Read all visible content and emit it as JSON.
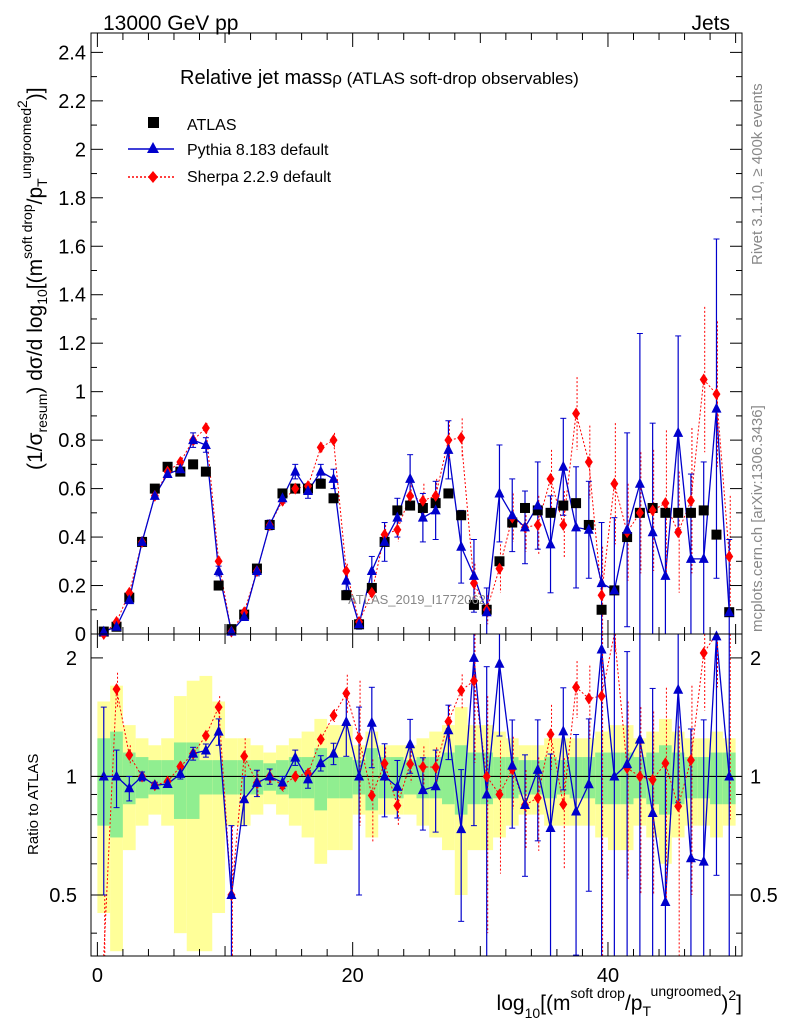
{
  "header": {
    "energy_label": "13000 GeV pp",
    "category_label": "Jets"
  },
  "side_text": {
    "rivet": "Rivet 3.1.10, ≥ 400k events",
    "mcplots": "mcplots.cern.ch [arXiv:1306.3436]"
  },
  "watermark": "ATLAS_2019_I1772062",
  "chart_data": {
    "type": "scatter",
    "title_main": "Relative jet mass",
    "title_sub": "ρ (ATLAS soft-drop observables)",
    "ylabel_top": "(1/σresum) dσ/d log10[(m soft drop/pT ungroomed)2)]",
    "ylabel_bottom": "Ratio to ATLAS",
    "xlabel": "log10[(m soft drop/pT ungroomed)2]",
    "xlim": [
      -0.5,
      50.5
    ],
    "ylim_top": [
      0,
      2.48
    ],
    "ylim_ratio": [
      0.35,
      2.3
    ],
    "x_ticks": [
      0,
      20,
      40
    ],
    "y_ticks_top": [
      "0",
      "0.2",
      "0.4",
      "0.6",
      "0.8",
      "1",
      "1.2",
      "1.4",
      "1.6",
      "1.8",
      "2",
      "2.2",
      "2.4"
    ],
    "y_ticks_ratio": [
      "0.5",
      "1",
      "2"
    ],
    "legend": [
      "ATLAS",
      "Pythia 8.183 default",
      "Sherpa 2.2.9 default"
    ],
    "x": [
      0.5,
      1.5,
      2.5,
      3.5,
      4.5,
      5.5,
      6.5,
      7.5,
      8.5,
      9.5,
      10.5,
      11.5,
      12.5,
      13.5,
      14.5,
      15.5,
      16.5,
      17.5,
      18.5,
      19.5,
      20.5,
      21.5,
      22.5,
      23.5,
      24.5,
      25.5,
      26.5,
      27.5,
      28.5,
      29.5,
      30.5,
      31.5,
      32.5,
      33.5,
      34.5,
      35.5,
      36.5,
      37.5,
      38.5,
      39.5,
      40.5,
      41.5,
      42.5,
      43.5,
      44.5,
      45.5,
      46.5,
      47.5,
      48.5,
      49.5
    ],
    "series": [
      {
        "name": "ATLAS",
        "color": "#000000",
        "marker": "square",
        "values": [
          0.01,
          0.03,
          0.15,
          0.38,
          0.6,
          0.69,
          0.67,
          0.7,
          0.67,
          0.2,
          0.02,
          0.08,
          0.27,
          0.45,
          0.58,
          0.6,
          0.6,
          0.62,
          0.56,
          0.16,
          0.04,
          0.19,
          0.38,
          0.51,
          0.53,
          0.52,
          0.54,
          0.58,
          0.49,
          0.12,
          0.1,
          0.3,
          0.46,
          0.52,
          0.51,
          0.5,
          0.53,
          0.54,
          0.45,
          0.1,
          0.18,
          0.4,
          0.5,
          0.52,
          0.5,
          0.5,
          0.5,
          0.51,
          0.41,
          0.09
        ]
      },
      {
        "name": "Pythia 8.183 default",
        "color": "#0000cc",
        "marker": "triangle",
        "values": [
          0.01,
          0.03,
          0.14,
          0.38,
          0.57,
          0.66,
          0.68,
          0.8,
          0.78,
          0.26,
          0.01,
          0.07,
          0.26,
          0.45,
          0.56,
          0.67,
          0.59,
          0.67,
          0.64,
          0.22,
          0.04,
          0.26,
          0.38,
          0.48,
          0.64,
          0.48,
          0.51,
          0.76,
          0.36,
          0.24,
          0.09,
          0.58,
          0.49,
          0.44,
          0.53,
          0.37,
          0.69,
          0.44,
          0.43,
          0.21,
          0.18,
          0.43,
          0.62,
          0.42,
          0.24,
          0.83,
          0.31,
          0.31,
          0.93,
          0.09
        ]
      },
      {
        "name": "Sherpa 2.2.9 default",
        "color": "#ff0000",
        "marker": "diamond",
        "values": [
          0.0,
          0.05,
          0.17,
          0.38,
          0.57,
          0.67,
          0.71,
          0.8,
          0.85,
          0.3,
          0.01,
          0.09,
          0.26,
          0.45,
          0.55,
          0.6,
          0.61,
          0.77,
          0.8,
          0.26,
          0.05,
          0.17,
          0.41,
          0.43,
          0.57,
          0.55,
          0.57,
          0.8,
          0.81,
          0.21,
          0.1,
          0.27,
          0.48,
          0.44,
          0.45,
          0.64,
          0.45,
          0.91,
          0.71,
          0.16,
          0.62,
          0.42,
          0.5,
          0.51,
          0.54,
          0.42,
          0.55,
          1.05,
          0.99,
          0.32
        ]
      }
    ],
    "pythia_errors": [
      0.005,
      0.005,
      0.01,
      0.01,
      0.01,
      0.01,
      0.02,
      0.03,
      0.03,
      0.02,
      0.005,
      0.01,
      0.02,
      0.02,
      0.02,
      0.03,
      0.03,
      0.03,
      0.04,
      0.04,
      0.02,
      0.06,
      0.08,
      0.08,
      0.1,
      0.1,
      0.12,
      0.12,
      0.15,
      0.15,
      0.1,
      0.2,
      0.15,
      0.15,
      0.18,
      0.2,
      0.2,
      0.25,
      0.2,
      0.25,
      0.3,
      0.4,
      0.62,
      0.45,
      0.3,
      0.4,
      0.35,
      0.4,
      0.7,
      0.3
    ],
    "sherpa_errors": [
      0.005,
      0.005,
      0.01,
      0.01,
      0.01,
      0.01,
      0.02,
      0.02,
      0.02,
      0.02,
      0.005,
      0.01,
      0.02,
      0.02,
      0.02,
      0.02,
      0.02,
      0.02,
      0.03,
      0.03,
      0.02,
      0.04,
      0.04,
      0.05,
      0.06,
      0.07,
      0.07,
      0.08,
      0.08,
      0.08,
      0.06,
      0.1,
      0.1,
      0.1,
      0.12,
      0.12,
      0.14,
      0.15,
      0.15,
      0.2,
      0.25,
      0.2,
      0.25,
      0.25,
      0.3,
      0.25,
      0.3,
      0.3,
      0.3,
      0.25
    ],
    "ratio_band_green": [
      0.25,
      0.3,
      0.15,
      0.12,
      0.1,
      0.1,
      0.22,
      0.22,
      0.1,
      0.1,
      0.1,
      0.1,
      0.1,
      0.08,
      0.1,
      0.12,
      0.12,
      0.18,
      0.12,
      0.12,
      0.1,
      0.18,
      0.12,
      0.12,
      0.1,
      0.12,
      0.12,
      0.15,
      0.2,
      0.15,
      0.15,
      0.12,
      0.12,
      0.1,
      0.1,
      0.12,
      0.1,
      0.12,
      0.12,
      0.15,
      0.15,
      0.15,
      0.12,
      0.15,
      0.2,
      0.15,
      0.12,
      0.12,
      0.15,
      0.15
    ],
    "ratio_band_yellow": [
      0.55,
      0.7,
      0.35,
      0.25,
      0.2,
      0.25,
      0.6,
      0.75,
      0.8,
      0.55,
      0.25,
      0.25,
      0.2,
      0.15,
      0.2,
      0.25,
      0.3,
      0.4,
      0.35,
      0.35,
      0.2,
      0.3,
      0.2,
      0.2,
      0.2,
      0.25,
      0.3,
      0.35,
      0.5,
      0.35,
      0.35,
      0.3,
      0.25,
      0.2,
      0.2,
      0.25,
      0.25,
      0.25,
      0.25,
      0.3,
      0.35,
      0.35,
      0.25,
      0.3,
      0.4,
      0.3,
      0.25,
      0.25,
      0.3,
      0.25
    ]
  }
}
